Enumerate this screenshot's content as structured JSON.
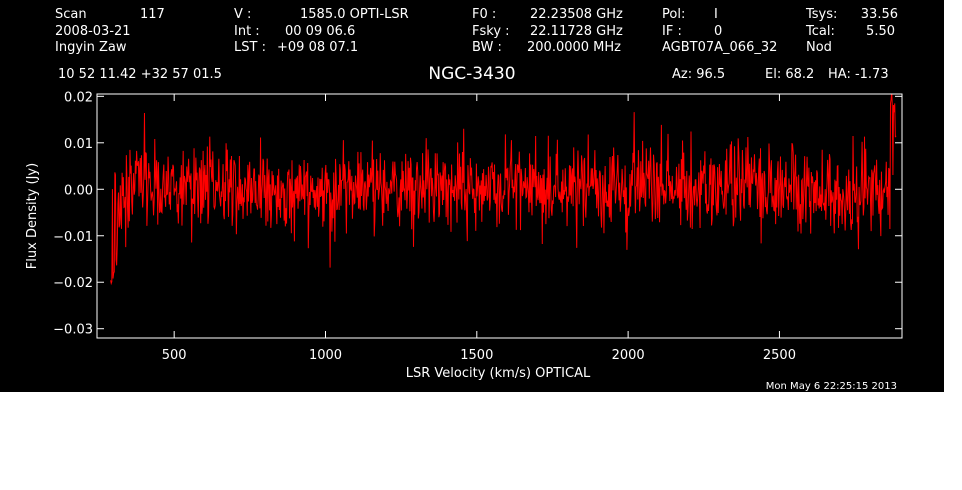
{
  "header": {
    "scan_label": "Scan",
    "scan_value": "117",
    "date": "2008-03-21",
    "observer": "Ingyin Zaw",
    "v_label": "V   :",
    "v_value": "1585.0 OPTI-LSR",
    "int_label": "Int  :",
    "int_value": "00 09 06.6",
    "lst_label": "LST :",
    "lst_value": "+09 08 07.1",
    "f0_label": "F0   :",
    "f0_value": "22.23508 GHz",
    "fsky_label": "Fsky :",
    "fsky_value": "22.11728 GHz",
    "bw_label": "BW   :",
    "bw_value": "200.0000 MHz",
    "pol_label": "Pol:",
    "pol_value": "I",
    "if_label": "IF :",
    "if_value": "0",
    "project": "AGBT07A_066_32",
    "tsys_label": "Tsys:",
    "tsys_value": "33.56",
    "tcal_label": "Tcal:",
    "tcal_value": "5.50",
    "mode": "Nod",
    "coords": "10 52 11.42  +32 57 01.5",
    "az": "Az:  96.5",
    "el": "El:  68.2",
    "ha": "HA: -1.73",
    "timestamp": "Mon May  6 22:25:15 2013"
  },
  "chart_data": {
    "type": "line",
    "title": "NGC-3430",
    "xlabel": "LSR Velocity (km/s) OPTICAL",
    "ylabel": "Flux Density (Jy)",
    "xlim": [
      245,
      2905
    ],
    "ylim": [
      -0.032,
      0.0205
    ],
    "x_ticks": [
      500,
      1000,
      1500,
      2000,
      2500
    ],
    "y_ticks": [
      -0.03,
      -0.02,
      -0.01,
      0.0,
      0.01,
      0.02
    ],
    "y_tick_labels": [
      "−0.03",
      "−0.02",
      "−0.01",
      "0.00",
      "0.01",
      "0.02"
    ],
    "grid": false,
    "series": [
      {
        "color": "#ff0000",
        "x_start": 290,
        "x_end": 2885,
        "n_channels": 1300,
        "noise_rms": 0.0045,
        "baseline": 0.0,
        "features": [
          {
            "x": 292,
            "y": -0.02
          },
          {
            "x": 300,
            "y": -0.019
          },
          {
            "x": 310,
            "y": -0.015
          },
          {
            "x": 2870,
            "y": 0.019
          },
          {
            "x": 2880,
            "y": 0.017
          },
          {
            "x": 2885,
            "y": 0.013
          }
        ]
      }
    ]
  }
}
